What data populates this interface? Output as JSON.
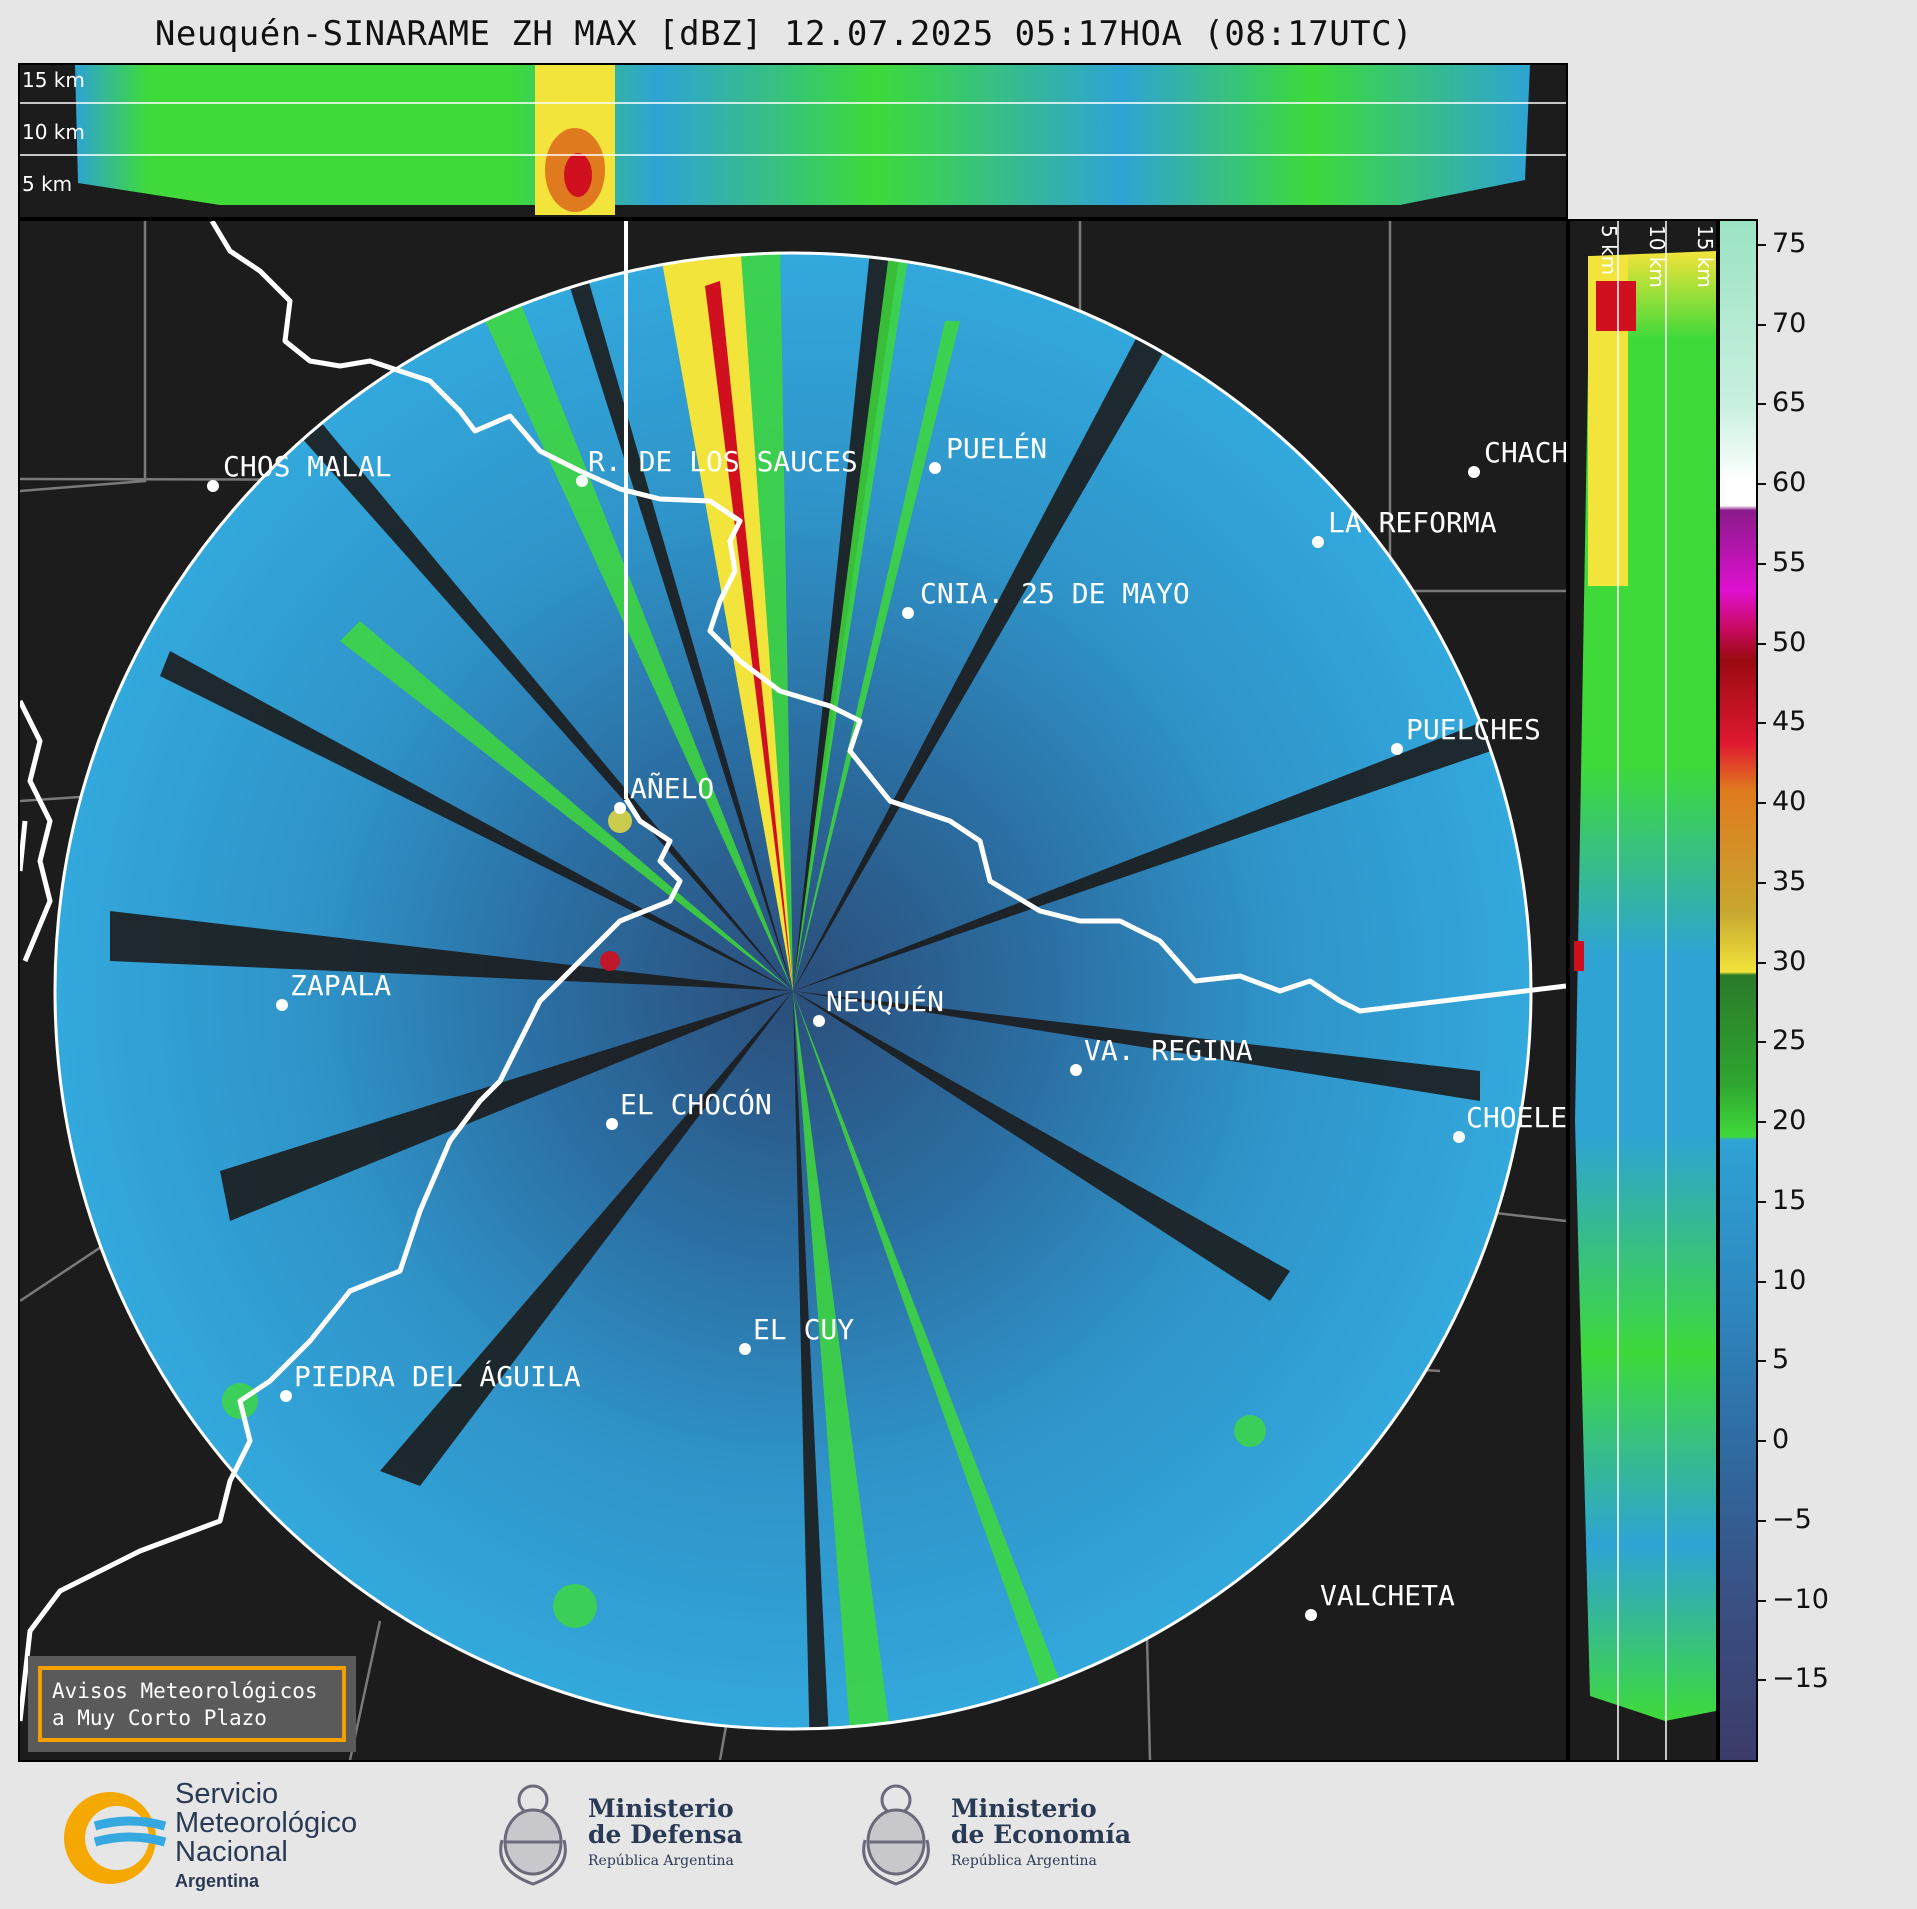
{
  "title": "Neuquén-SINARAME ZH MAX [dBZ] 12.07.2025 05:17HOA (08:17UTC)",
  "top_panel": {
    "km_labels": [
      "15 km",
      "10 km",
      "5 km"
    ]
  },
  "right_panel": {
    "km_labels": [
      "5 km",
      "10 km",
      "15 km"
    ]
  },
  "cities": [
    {
      "name": "CHOS MALAL"
    },
    {
      "name": "R. DE LOS SAUCES"
    },
    {
      "name": "PUELÉN"
    },
    {
      "name": "CHACH"
    },
    {
      "name": "LA REFORMA"
    },
    {
      "name": "CNIA. 25 DE MAYO"
    },
    {
      "name": "PUELCHES"
    },
    {
      "name": "AÑELO"
    },
    {
      "name": "ZAPALA"
    },
    {
      "name": "NEUQUÉN"
    },
    {
      "name": "VA. REGINA"
    },
    {
      "name": "EL CHOCÓN"
    },
    {
      "name": "CHOELE"
    },
    {
      "name": "EL CUY"
    },
    {
      "name": "PIEDRA DEL ÁGUILA"
    },
    {
      "name": "VALCHETA"
    }
  ],
  "colorbar": {
    "unit": "dBZ",
    "tick_labels": [
      "75",
      "70",
      "65",
      "60",
      "55",
      "50",
      "45",
      "40",
      "35",
      "30",
      "25",
      "20",
      "15",
      "10",
      "5",
      "0",
      "−5",
      "−10",
      "−15"
    ],
    "range": [
      -20,
      76.5
    ]
  },
  "avisos": {
    "line1": "Avisos Meteorológicos",
    "line2": "a Muy Corto Plazo"
  },
  "logos": {
    "smn": {
      "line1": "Servicio",
      "line2": "Meteorológico",
      "line3": "Nacional",
      "line4": "Argentina"
    },
    "defensa": {
      "line1": "Ministerio",
      "line2": "de Defensa",
      "line3": "República Argentina"
    },
    "economia": {
      "line1": "Ministerio",
      "line2": "de Economía",
      "line3": "República Argentina"
    }
  },
  "colors": {
    "background": "#1c1c1c",
    "echo_blue": "#2ea3d4",
    "echo_green": "#3fd93a",
    "echo_yellow": "#f2e43a",
    "echo_red": "#d0101e",
    "border": "#ffffff",
    "province_lines": "#7a7a7a",
    "avisos_frame": "#f5a000"
  }
}
